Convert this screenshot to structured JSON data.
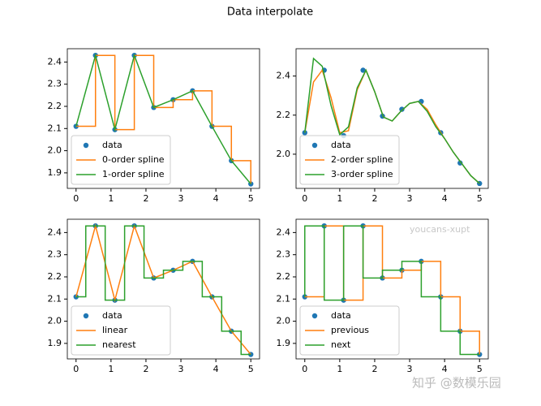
{
  "title": "Data interpolate",
  "watermarks": [
    "youcans-xupt",
    "知乎 @数模乐园"
  ],
  "chart_data": [
    {
      "type": "line",
      "xlim": [
        -0.25,
        5.25
      ],
      "xticks": [
        0,
        1,
        2,
        3,
        4,
        5
      ],
      "ylim": [
        1.83,
        2.46
      ],
      "yticks": [
        1.9,
        {
          "value": 2,
          "label": "2.0"
        },
        2.1,
        2.2,
        2.3,
        2.4
      ],
      "legend": "lower left",
      "series": [
        {
          "name": "data",
          "style": "scatter",
          "color": "#1f77b4",
          "x": [
            0,
            0.556,
            1.111,
            1.667,
            2.222,
            2.778,
            3.333,
            3.889,
            4.444,
            5
          ],
          "values": [
            2.11,
            2.43,
            2.095,
            2.43,
            2.195,
            2.23,
            2.27,
            2.11,
            1.955,
            1.85
          ]
        },
        {
          "name": "0-order spline",
          "style": "steps-post",
          "color": "#ff7f0e",
          "x": [
            0,
            0.556,
            1.111,
            1.667,
            2.222,
            2.778,
            3.333,
            3.889,
            4.444,
            5
          ],
          "values": [
            2.11,
            2.43,
            2.095,
            2.43,
            2.195,
            2.23,
            2.27,
            2.11,
            1.955,
            1.85
          ]
        },
        {
          "name": "1-order spline",
          "style": "line",
          "color": "#2ca02c",
          "x": [
            0,
            0.556,
            1.111,
            1.667,
            2.222,
            2.778,
            3.333,
            3.889,
            4.444,
            5
          ],
          "values": [
            2.11,
            2.43,
            2.095,
            2.43,
            2.195,
            2.23,
            2.27,
            2.11,
            1.955,
            1.85
          ]
        }
      ]
    },
    {
      "type": "line",
      "xlim": [
        -0.25,
        5.25
      ],
      "xticks": [
        0,
        1,
        2,
        3,
        4,
        5
      ],
      "ylim": [
        1.825,
        2.54
      ],
      "yticks": [
        {
          "value": 2,
          "label": "2.0"
        },
        2.2,
        2.4
      ],
      "legend": "lower left",
      "series": [
        {
          "name": "data",
          "style": "scatter",
          "color": "#1f77b4",
          "x": [
            0,
            0.556,
            1.111,
            1.667,
            2.222,
            2.778,
            3.333,
            3.889,
            4.444,
            5
          ],
          "values": [
            2.11,
            2.43,
            2.095,
            2.43,
            2.195,
            2.23,
            2.27,
            2.11,
            1.955,
            1.85
          ]
        },
        {
          "name": "2-order spline",
          "style": "line",
          "color": "#ff7f0e",
          "x": [
            0,
            0.25,
            0.5,
            0.75,
            1,
            1.25,
            1.5,
            1.75,
            2,
            2.25,
            2.5,
            2.75,
            3,
            3.25,
            3.5,
            3.75,
            4,
            4.25,
            4.5,
            4.75,
            5
          ],
          "values": [
            2.11,
            2.37,
            2.43,
            2.29,
            2.11,
            2.12,
            2.33,
            2.43,
            2.32,
            2.19,
            2.17,
            2.22,
            2.26,
            2.27,
            2.23,
            2.15,
            2.08,
            2.01,
            1.95,
            1.89,
            1.85
          ]
        },
        {
          "name": "3-order spline",
          "style": "line",
          "color": "#2ca02c",
          "x": [
            0,
            0.25,
            0.5,
            0.75,
            1,
            1.25,
            1.5,
            1.75,
            2,
            2.25,
            2.5,
            2.75,
            3,
            3.25,
            3.5,
            3.75,
            4,
            4.25,
            4.5,
            4.75,
            5
          ],
          "values": [
            2.11,
            2.49,
            2.45,
            2.25,
            2.1,
            2.14,
            2.34,
            2.43,
            2.32,
            2.19,
            2.17,
            2.22,
            2.26,
            2.27,
            2.22,
            2.14,
            2.08,
            2.01,
            1.95,
            1.89,
            1.85
          ]
        }
      ]
    },
    {
      "type": "line",
      "xlim": [
        -0.25,
        5.25
      ],
      "xticks": [
        0,
        1,
        2,
        3,
        4,
        5
      ],
      "ylim": [
        1.83,
        2.46
      ],
      "yticks": [
        1.9,
        {
          "value": 2,
          "label": "2.0"
        },
        2.1,
        2.2,
        2.3,
        2.4
      ],
      "legend": "lower left",
      "series": [
        {
          "name": "data",
          "style": "scatter",
          "color": "#1f77b4",
          "x": [
            0,
            0.556,
            1.111,
            1.667,
            2.222,
            2.778,
            3.333,
            3.889,
            4.444,
            5
          ],
          "values": [
            2.11,
            2.43,
            2.095,
            2.43,
            2.195,
            2.23,
            2.27,
            2.11,
            1.955,
            1.85
          ]
        },
        {
          "name": "linear",
          "style": "line",
          "color": "#ff7f0e",
          "x": [
            0,
            0.556,
            1.111,
            1.667,
            2.222,
            2.778,
            3.333,
            3.889,
            4.444,
            5
          ],
          "values": [
            2.11,
            2.43,
            2.095,
            2.43,
            2.195,
            2.23,
            2.27,
            2.11,
            1.955,
            1.85
          ]
        },
        {
          "name": "nearest",
          "style": "steps-mid",
          "color": "#2ca02c",
          "x": [
            0,
            0.556,
            1.111,
            1.667,
            2.222,
            2.778,
            3.333,
            3.889,
            4.444,
            5
          ],
          "values": [
            2.11,
            2.43,
            2.095,
            2.43,
            2.195,
            2.23,
            2.27,
            2.11,
            1.955,
            1.85
          ]
        }
      ]
    },
    {
      "type": "line",
      "xlim": [
        -0.25,
        5.25
      ],
      "xticks": [
        0,
        1,
        2,
        3,
        4,
        5
      ],
      "ylim": [
        1.83,
        2.46
      ],
      "yticks": [
        1.9,
        {
          "value": 2,
          "label": "2.0"
        },
        2.1,
        2.2,
        2.3,
        2.4
      ],
      "legend": "lower left",
      "series": [
        {
          "name": "data",
          "style": "scatter",
          "color": "#1f77b4",
          "x": [
            0,
            0.556,
            1.111,
            1.667,
            2.222,
            2.778,
            3.333,
            3.889,
            4.444,
            5
          ],
          "values": [
            2.11,
            2.43,
            2.095,
            2.43,
            2.195,
            2.23,
            2.27,
            2.11,
            1.955,
            1.85
          ]
        },
        {
          "name": "previous",
          "style": "steps-post",
          "color": "#ff7f0e",
          "x": [
            0,
            0.556,
            1.111,
            1.667,
            2.222,
            2.778,
            3.333,
            3.889,
            4.444,
            5
          ],
          "values": [
            2.11,
            2.43,
            2.095,
            2.43,
            2.195,
            2.23,
            2.27,
            2.11,
            1.955,
            1.85
          ]
        },
        {
          "name": "next",
          "style": "steps-pre",
          "color": "#2ca02c",
          "x": [
            0,
            0.556,
            1.111,
            1.667,
            2.222,
            2.778,
            3.333,
            3.889,
            4.444,
            5
          ],
          "values": [
            2.11,
            2.43,
            2.095,
            2.43,
            2.195,
            2.23,
            2.27,
            2.11,
            1.955,
            1.85
          ]
        }
      ]
    }
  ]
}
